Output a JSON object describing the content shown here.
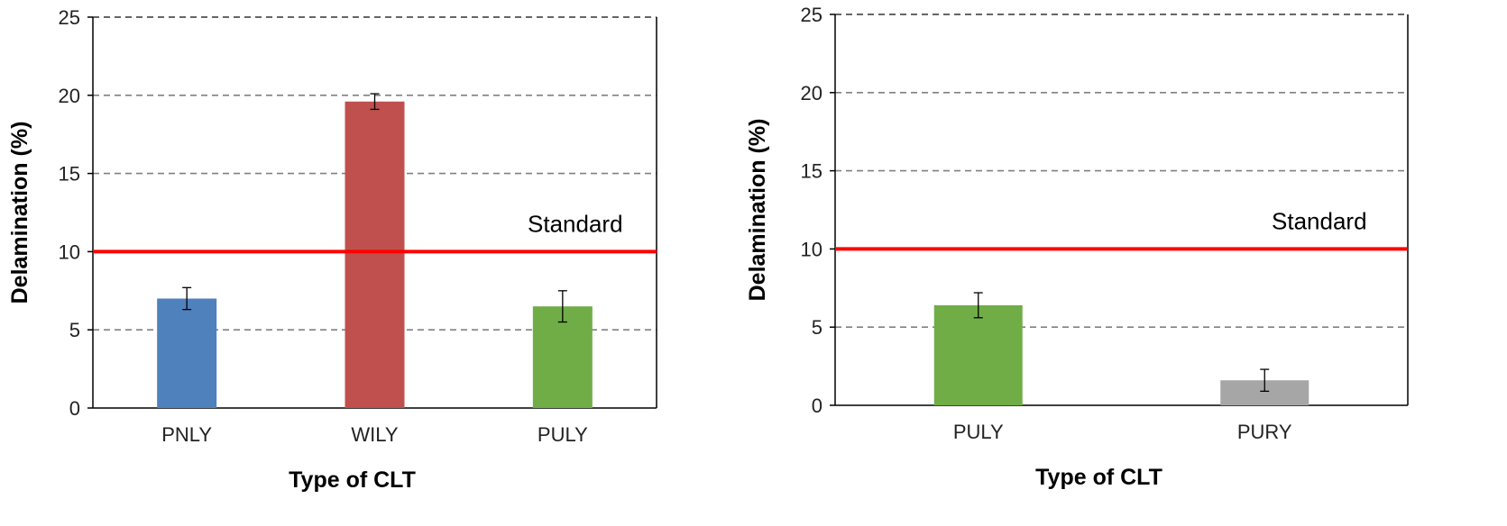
{
  "chart_data": [
    {
      "type": "bar",
      "categories": [
        "PNLY",
        "WILY",
        "PULY"
      ],
      "values": [
        7.0,
        19.6,
        6.5
      ],
      "errors": [
        0.7,
        0.5,
        1.0
      ],
      "colors": [
        "#4f81bd",
        "#c0504d",
        "#70ad47"
      ],
      "xlabel": "Type of CLT",
      "ylabel": "Delamination (%)",
      "ylim": [
        0,
        25
      ],
      "yticks": [
        0,
        5,
        10,
        15,
        20,
        25
      ],
      "grid": "horizontal-dashed",
      "reference_line": {
        "value": 10,
        "label": "Standard",
        "color": "#ff0000"
      }
    },
    {
      "type": "bar",
      "categories": [
        "PULY",
        "PURY"
      ],
      "values": [
        6.4,
        1.6
      ],
      "errors": [
        0.8,
        0.7
      ],
      "colors": [
        "#70ad47",
        "#a6a6a6"
      ],
      "xlabel": "Type of CLT",
      "ylabel": "Delamination (%)",
      "ylim": [
        0,
        25
      ],
      "yticks": [
        0,
        5,
        10,
        15,
        20,
        25
      ],
      "grid": "horizontal-dashed",
      "reference_line": {
        "value": 10,
        "label": "Standard",
        "color": "#ff0000"
      }
    }
  ]
}
